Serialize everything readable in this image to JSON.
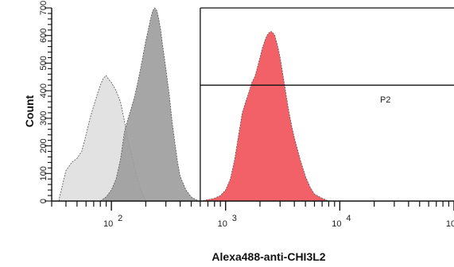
{
  "chart_data": {
    "type": "area",
    "title": "",
    "xlabel": "Alexa488-anti-CHI3L2",
    "ylabel": "Count",
    "x_scale": "log",
    "xlim": [
      30,
      100000
    ],
    "ylim": [
      0,
      700
    ],
    "x_ticks": [
      {
        "value": 100,
        "label": "10",
        "exp": "2"
      },
      {
        "value": 1000,
        "label": "10",
        "exp": "3"
      },
      {
        "value": 10000,
        "label": "10",
        "exp": "4"
      },
      {
        "value": 100000,
        "label": "10",
        "exp": "5"
      }
    ],
    "y_ticks": [
      {
        "value": 0,
        "label": "0"
      },
      {
        "value": 100,
        "label": "100"
      },
      {
        "value": 200,
        "label": "200"
      },
      {
        "value": 300,
        "label": "300"
      },
      {
        "value": 400,
        "label": "400"
      },
      {
        "value": 500,
        "label": "500"
      },
      {
        "value": 600,
        "label": "600"
      },
      {
        "value": 700,
        "label": "700"
      }
    ],
    "gate": {
      "label": "P2",
      "x_min": 600,
      "y_level": 420
    },
    "series": [
      {
        "color": "#e0e0e0",
        "x": [
          35,
          40,
          45,
          50,
          55,
          60,
          65,
          70,
          75,
          80,
          85,
          90,
          95,
          100,
          110,
          120,
          130,
          140,
          150,
          160,
          170,
          180,
          190,
          200
        ],
        "y": [
          10,
          110,
          140,
          155,
          180,
          240,
          300,
          345,
          385,
          420,
          445,
          455,
          440,
          430,
          400,
          360,
          290,
          220,
          170,
          120,
          80,
          45,
          20,
          0
        ]
      },
      {
        "color": "#9e9e9e",
        "x": [
          80,
          90,
          100,
          110,
          120,
          130,
          140,
          150,
          160,
          170,
          180,
          190,
          200,
          210,
          220,
          230,
          240,
          250,
          260,
          270,
          280,
          300,
          320,
          340,
          360,
          380,
          400,
          450,
          500,
          550,
          600
        ],
        "y": [
          0,
          15,
          40,
          80,
          150,
          250,
          300,
          340,
          380,
          430,
          480,
          530,
          580,
          620,
          660,
          690,
          700,
          690,
          660,
          620,
          570,
          480,
          390,
          290,
          210,
          140,
          90,
          40,
          15,
          5,
          0
        ]
      },
      {
        "color": "#f2545b",
        "x": [
          600,
          700,
          800,
          900,
          1000,
          1100,
          1200,
          1300,
          1400,
          1500,
          1600,
          1700,
          1800,
          1900,
          2000,
          2100,
          2200,
          2300,
          2400,
          2500,
          2600,
          2700,
          2800,
          2900,
          3000,
          3200,
          3400,
          3600,
          3800,
          4000,
          4500,
          5000,
          5500,
          6000,
          7000,
          8000
        ],
        "y": [
          0,
          5,
          10,
          20,
          40,
          80,
          150,
          240,
          320,
          360,
          395,
          430,
          450,
          485,
          520,
          555,
          580,
          600,
          610,
          615,
          610,
          600,
          575,
          550,
          520,
          450,
          380,
          320,
          270,
          230,
          150,
          90,
          50,
          25,
          10,
          0
        ]
      }
    ]
  }
}
